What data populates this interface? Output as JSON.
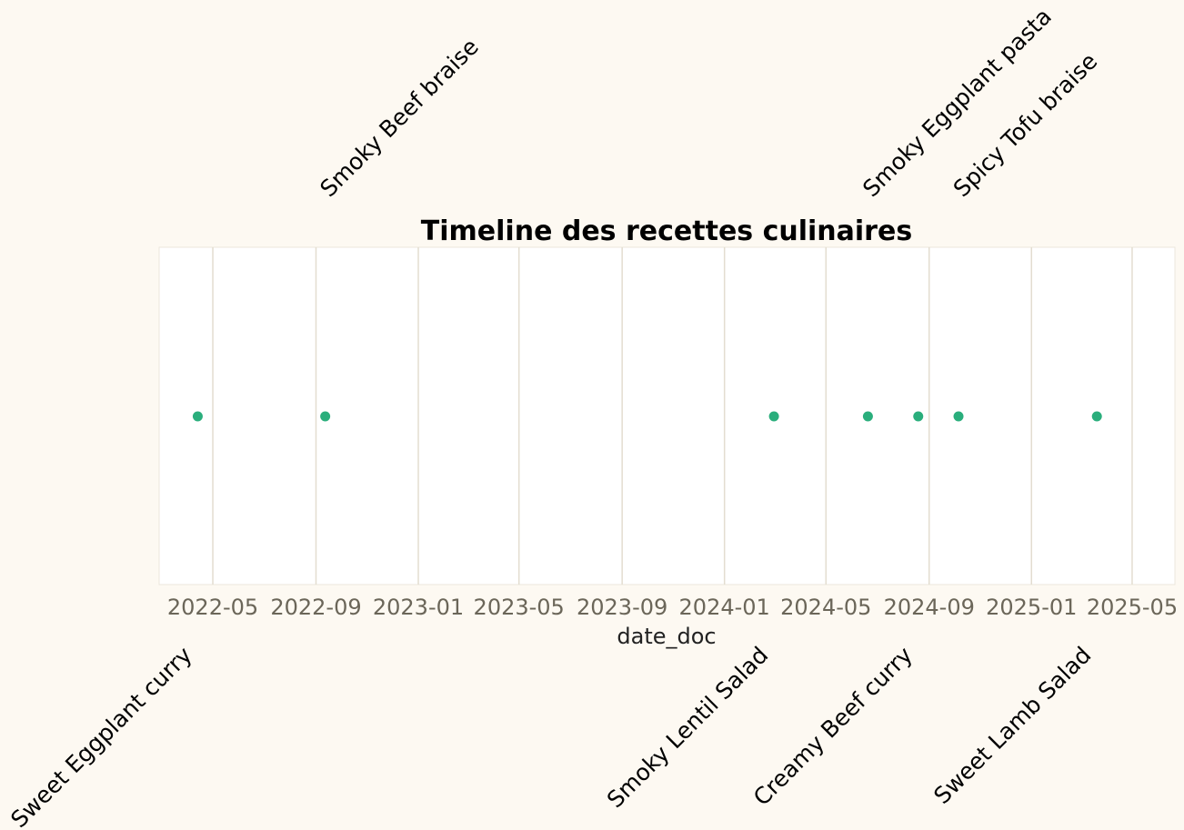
{
  "chart_data": {
    "type": "scatter",
    "title": "Timeline des recettes culinaires",
    "xlabel": "date_doc",
    "ylabel": "",
    "x_is_date": true,
    "xlim": [
      "2022-02-26",
      "2025-06-21"
    ],
    "x_ticks": [
      "2022-05-01",
      "2022-09-01",
      "2023-01-01",
      "2023-05-01",
      "2023-09-01",
      "2024-01-01",
      "2024-05-01",
      "2024-09-01",
      "2025-01-01",
      "2025-05-01"
    ],
    "x_tick_labels": [
      "2022-05",
      "2022-09",
      "2023-01",
      "2023-05",
      "2023-09",
      "2024-01",
      "2024-05",
      "2024-09",
      "2025-01",
      "2025-05"
    ],
    "grid": "vertical",
    "legend": "none",
    "point_color": "#2aae7c",
    "grid_color": "#e3ddd0",
    "points": [
      {
        "date": "2022-04-13",
        "label": "Sweet Eggplant curry"
      },
      {
        "date": "2022-09-12",
        "label": "Smoky Beef braise"
      },
      {
        "date": "2024-02-29",
        "label": "Smoky Lentil Salad"
      },
      {
        "date": "2024-06-20",
        "label": "Smoky Eggplant pasta"
      },
      {
        "date": "2024-08-19",
        "label": "Creamy Beef curry"
      },
      {
        "date": "2024-10-06",
        "label": "Spicy Tofu braise"
      },
      {
        "date": "2025-03-20",
        "label": "Sweet Lamb Salad"
      }
    ]
  }
}
